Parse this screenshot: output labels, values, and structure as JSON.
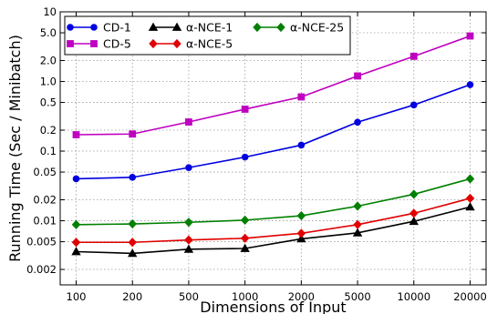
{
  "chart_data": {
    "type": "line",
    "xlabel": "Dimensions of Input",
    "ylabel": "Running Time (Sec / Minibatch)",
    "y_scale": "log",
    "ylim": [
      0.0012,
      10
    ],
    "grid": true,
    "legend_position": "top-left",
    "x": [
      "100",
      "200",
      "500",
      "1000",
      "2000",
      "5000",
      "10000",
      "20000"
    ],
    "y_ticks": [
      {
        "value": 0.002,
        "label": "0.002"
      },
      {
        "value": 0.005,
        "label": "0.005"
      },
      {
        "value": 0.01,
        "label": "0.01"
      },
      {
        "value": 0.02,
        "label": "0.02"
      },
      {
        "value": 0.05,
        "label": "0.05"
      },
      {
        "value": 0.1,
        "label": "0.1"
      },
      {
        "value": 0.2,
        "label": "0.2"
      },
      {
        "value": 0.5,
        "label": "0.5"
      },
      {
        "value": 1.0,
        "label": "1.0"
      },
      {
        "value": 2.0,
        "label": "2.0"
      },
      {
        "value": 5.0,
        "label": "5.0"
      },
      {
        "value": 10,
        "label": "10"
      }
    ],
    "series": [
      {
        "name": "CD-1",
        "color": "#0000e0",
        "marker": "circle",
        "values": [
          0.04,
          0.042,
          0.058,
          0.082,
          0.122,
          0.26,
          0.46,
          0.9
        ]
      },
      {
        "name": "CD-5",
        "color": "#c000c0",
        "marker": "square",
        "values": [
          0.172,
          0.176,
          0.262,
          0.4,
          0.6,
          1.2,
          2.3,
          4.5
        ]
      },
      {
        "name": "α-NCE-1",
        "color": "#000000",
        "marker": "triangle",
        "values": [
          0.0036,
          0.0034,
          0.0039,
          0.004,
          0.0055,
          0.0067,
          0.0098,
          0.0158
        ]
      },
      {
        "name": "α-NCE-5",
        "color": "#e00000",
        "marker": "diamond",
        "values": [
          0.0049,
          0.0049,
          0.0053,
          0.0056,
          0.0066,
          0.0088,
          0.0128,
          0.021
        ]
      },
      {
        "name": "α-NCE-25",
        "color": "#008000",
        "marker": "diamond",
        "values": [
          0.0088,
          0.009,
          0.0095,
          0.0102,
          0.0118,
          0.0162,
          0.024,
          0.04
        ]
      }
    ]
  }
}
